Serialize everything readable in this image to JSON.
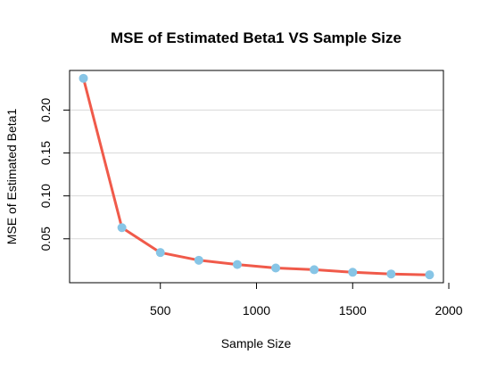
{
  "chart_data": {
    "type": "line",
    "title": "MSE of Estimated Beta1 VS Sample Size",
    "xlabel": "Sample Size",
    "ylabel": "MSE of Estimated Beta1",
    "x": [
      100,
      300,
      500,
      700,
      900,
      1100,
      1300,
      1500,
      1700,
      1900
    ],
    "series": [
      {
        "values": [
          0.237,
          0.063,
          0.034,
          0.025,
          0.02,
          0.016,
          0.014,
          0.011,
          0.009,
          0.008
        ]
      }
    ],
    "xlim": [
      100,
      1900
    ],
    "ylim": [
      0.008,
      0.237
    ],
    "xticks": [
      500,
      1000,
      1500,
      2000
    ],
    "xtick_labels": [
      "500",
      "1000",
      "1500",
      "2000"
    ],
    "yticks": [
      0.05,
      0.1,
      0.15,
      0.2
    ],
    "ytick_labels": [
      "0.05",
      "0.10",
      "0.15",
      "0.20"
    ],
    "grid": "horizontal",
    "line_color": "#f05a4a",
    "point_color": "#87c5e6",
    "grid_color": "#d9d9d9"
  }
}
